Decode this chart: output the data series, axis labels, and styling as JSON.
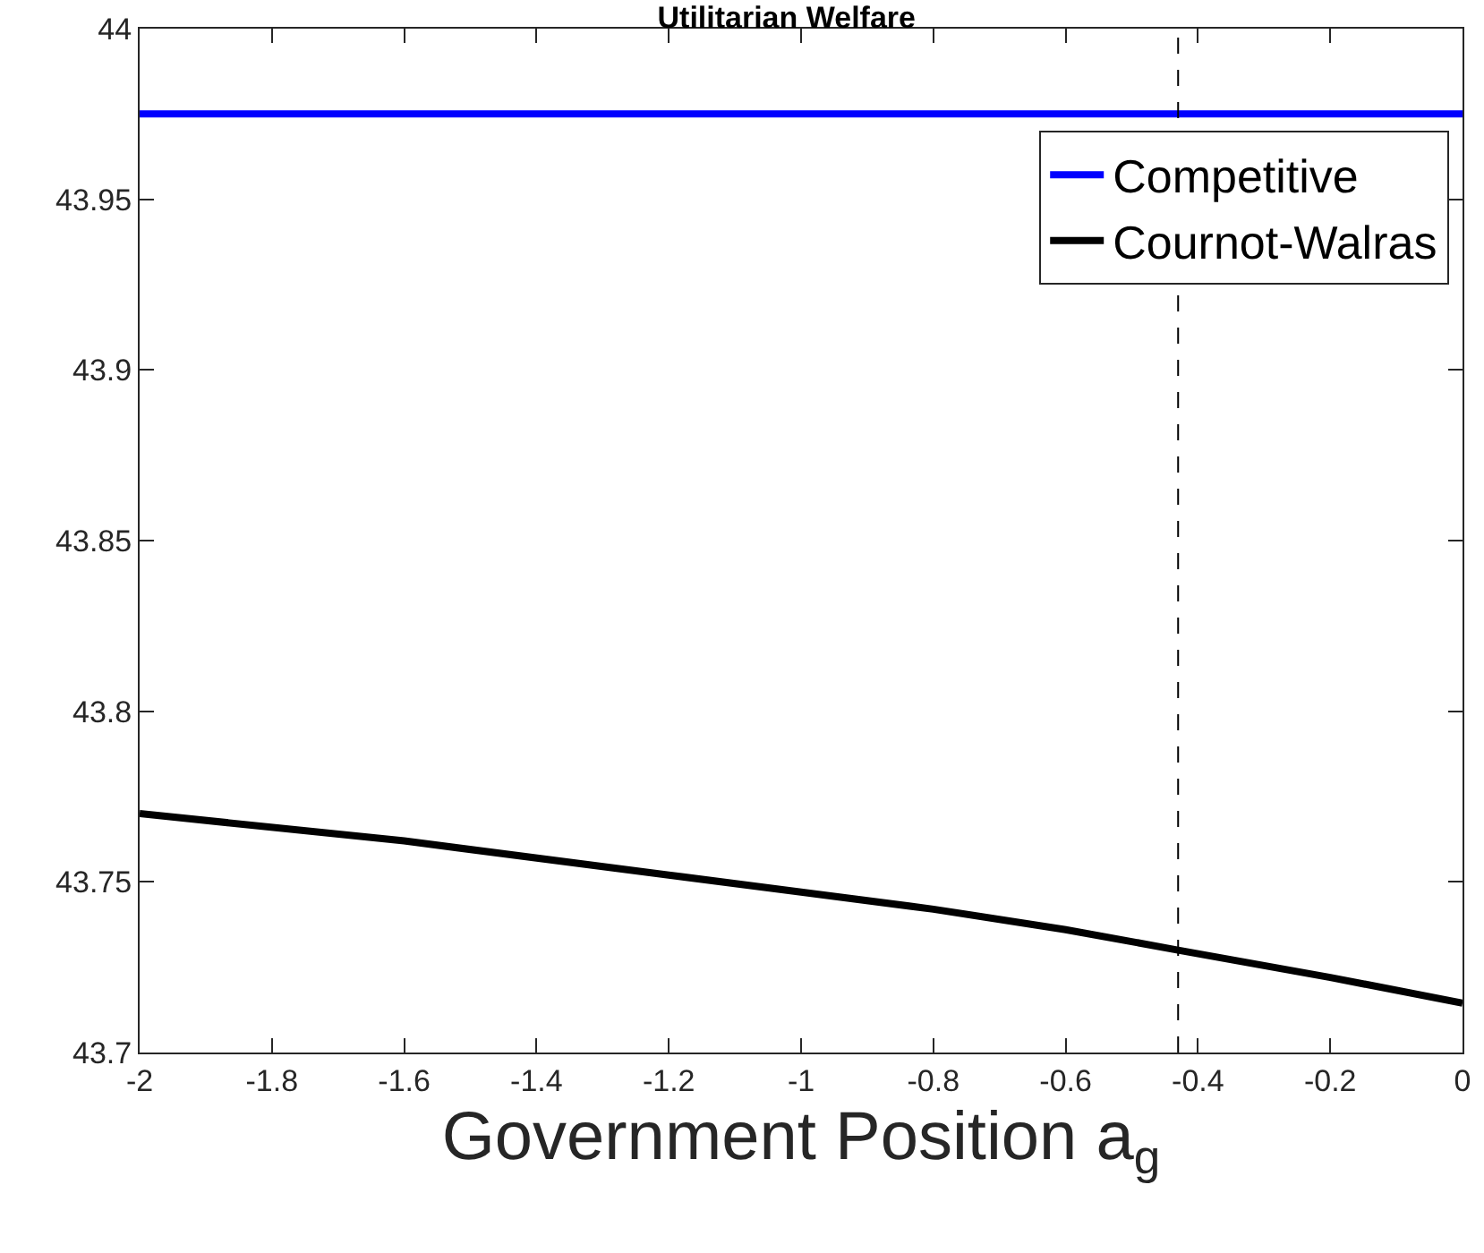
{
  "chart_data": {
    "type": "line",
    "title": "Utilitarian Welfare",
    "xlabel": "Government Position a$_{g}$",
    "series": [
      {
        "name": "Competitive",
        "color": "#0000ff",
        "x": [
          -2,
          0
        ],
        "values": [
          43.975,
          43.975
        ]
      },
      {
        "name": "Cournot-Walras",
        "color": "#000000",
        "x": [
          -2,
          -1.6,
          -1.2,
          -1,
          -0.8,
          -0.6,
          -0.43,
          -0.2,
          0
        ],
        "values": [
          43.77,
          43.762,
          43.752,
          43.747,
          43.742,
          43.736,
          43.73,
          43.722,
          43.7145
        ]
      }
    ],
    "ref_lines": [
      {
        "axis": "x",
        "value": -0.43,
        "label": null,
        "color": "#000000",
        "line_style": "dashed"
      }
    ],
    "xlim": [
      -2,
      0
    ],
    "xticks": [
      -2,
      -1.8,
      -1.6,
      -1.4,
      -1.2,
      -1,
      -0.8,
      -0.6,
      -0.4,
      -0.2,
      0
    ],
    "ylim": [
      43.7,
      44
    ],
    "yticks": [
      43.7,
      43.75,
      43.8,
      43.85,
      43.9,
      43.95,
      44
    ],
    "legend": "top right",
    "marker": "none",
    "line_style": "solid"
  }
}
